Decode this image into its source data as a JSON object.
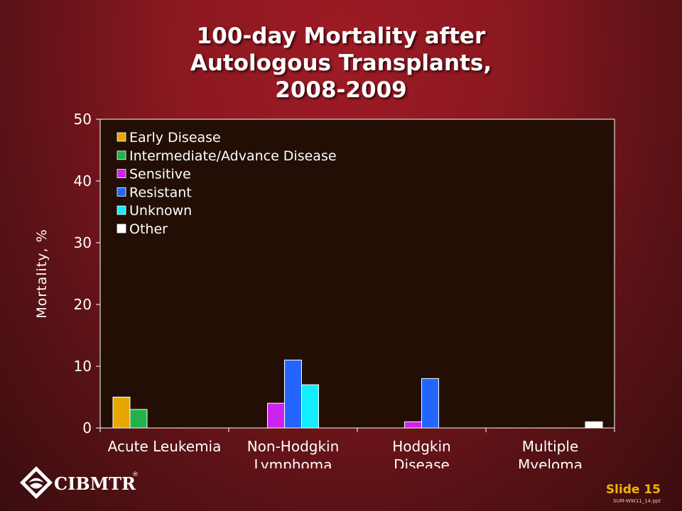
{
  "title": {
    "line1": "100-day Mortality after",
    "line2": "Autologous Transplants,",
    "line3": "2008-2009"
  },
  "chart_data": {
    "type": "bar",
    "categories": [
      [
        "Acute Leukemia"
      ],
      [
        "Non-Hodgkin",
        "Lymphoma"
      ],
      [
        "Hodgkin",
        "Disease"
      ],
      [
        "Multiple",
        "Myeloma"
      ]
    ],
    "series": [
      {
        "name": "Early Disease",
        "color": "#e6a800",
        "values": [
          5,
          null,
          null,
          null
        ]
      },
      {
        "name": "Intermediate/Advance Disease",
        "color": "#22b14c",
        "values": [
          3,
          null,
          null,
          null
        ]
      },
      {
        "name": "Sensitive",
        "color": "#cc22ee",
        "values": [
          null,
          4,
          1,
          null
        ]
      },
      {
        "name": "Resistant",
        "color": "#2266ff",
        "values": [
          null,
          11,
          8,
          null
        ]
      },
      {
        "name": "Unknown",
        "color": "#11eeff",
        "values": [
          null,
          7,
          null,
          null
        ]
      },
      {
        "name": "Other",
        "color": "#ffffff",
        "values": [
          null,
          null,
          null,
          1
        ]
      }
    ],
    "ylabel": "Mortality, %",
    "xlabel": "",
    "ylim": [
      0,
      50
    ],
    "yticks": [
      0,
      10,
      20,
      30,
      40,
      50
    ],
    "grid": false,
    "legend_position": "top-left",
    "plot_background": "#230e05"
  },
  "logo": {
    "text": "CIBMTR",
    "mark": "®"
  },
  "footer": {
    "slide_label": "Slide 15",
    "file_ref": "SUM-WW11_14.ppt"
  }
}
